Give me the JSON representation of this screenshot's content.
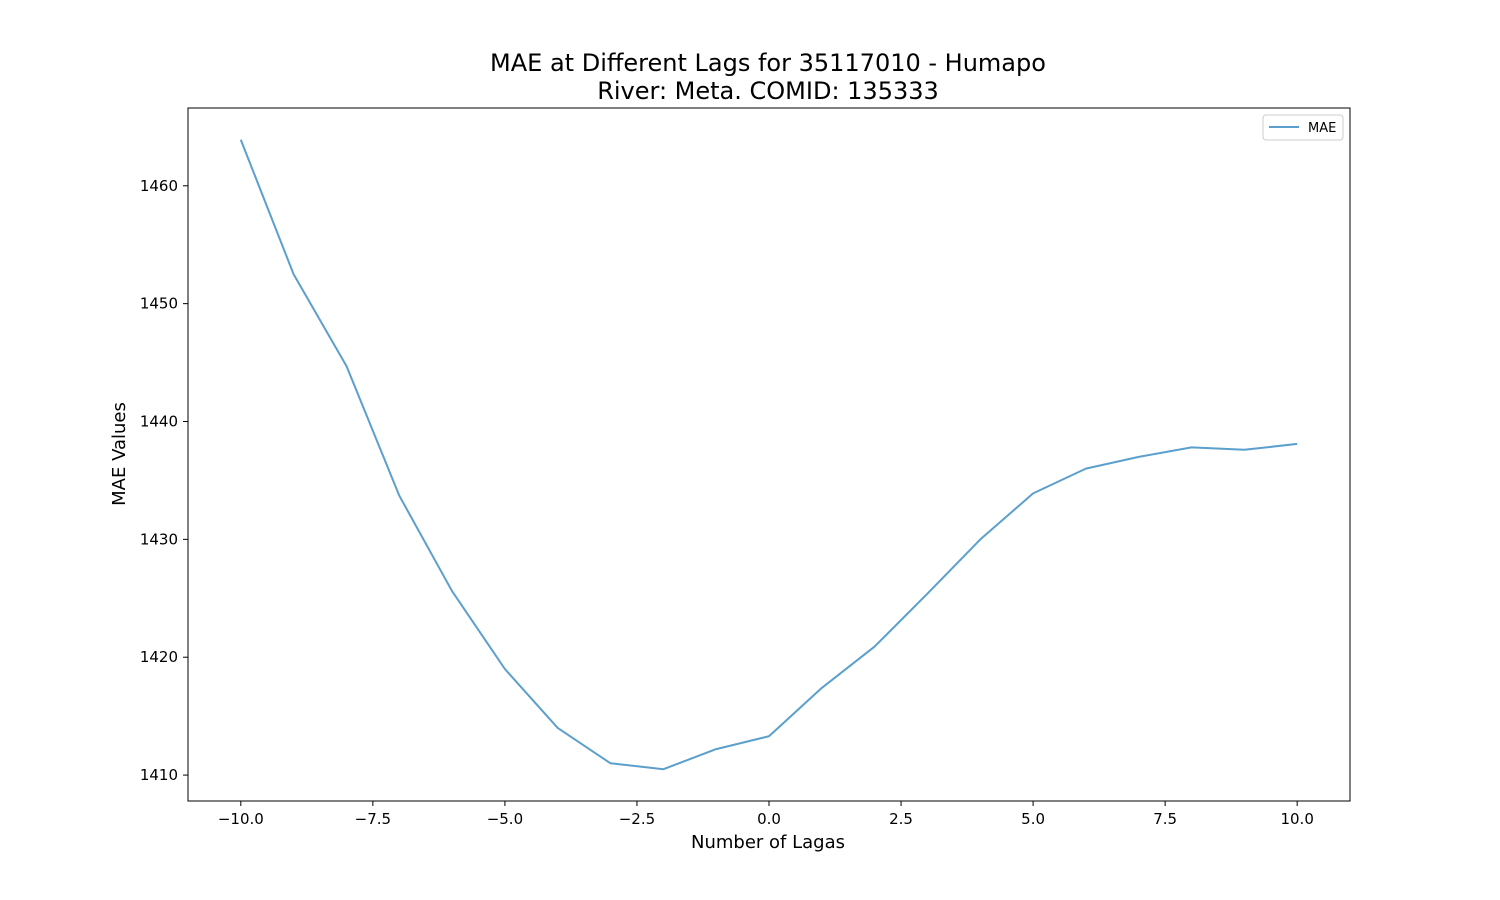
{
  "chart_data": {
    "type": "line",
    "title_line1": "MAE at Different Lags for 35117010 - Humapo",
    "title_line2": "River: Meta. COMID: 135333",
    "xlabel": "Number of Lagas",
    "ylabel": "MAE Values",
    "xlim": [
      -11.0,
      11.0
    ],
    "ylim": [
      1407.8,
      1466.6
    ],
    "xticks": [
      -10.0,
      -7.5,
      -5.0,
      -2.5,
      0.0,
      2.5,
      5.0,
      7.5,
      10.0
    ],
    "xtick_labels": [
      "−10.0",
      "−7.5",
      "−5.0",
      "−2.5",
      "0.0",
      "2.5",
      "5.0",
      "7.5",
      "10.0"
    ],
    "yticks": [
      1410,
      1420,
      1430,
      1440,
      1450,
      1460
    ],
    "ytick_labels": [
      "1410",
      "1420",
      "1430",
      "1440",
      "1450",
      "1460"
    ],
    "grid": false,
    "legend_position": "top-right",
    "series": [
      {
        "name": "MAE",
        "color": "#5b9fcc",
        "x": [
          -10,
          -9,
          -8,
          -7,
          -6,
          -5,
          -4,
          -3,
          -2,
          -1,
          0,
          1,
          2,
          3,
          4,
          5,
          6,
          7,
          8,
          9,
          10
        ],
        "y": [
          1463.9,
          1452.5,
          1444.7,
          1433.7,
          1425.6,
          1419.0,
          1414.0,
          1411.0,
          1410.5,
          1412.2,
          1413.3,
          1417.4,
          1420.9,
          1425.4,
          1430.0,
          1433.9,
          1436.0,
          1437.0,
          1437.8,
          1437.6,
          1438.1
        ]
      }
    ]
  }
}
